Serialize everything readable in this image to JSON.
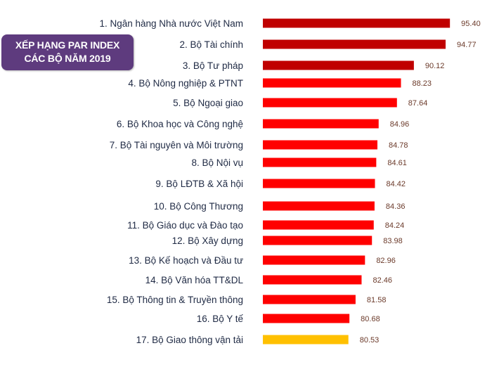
{
  "chart_data": {
    "type": "bar",
    "orientation": "horizontal",
    "title_lines": [
      "XẾP HẠNG PAR INDEX",
      "CÁC BỘ NĂM 2019"
    ],
    "categories": [
      "1. Ngân hàng Nhà nước Việt Nam",
      "2. Bộ Tài chính",
      "3. Bộ Tư pháp",
      "4. Bộ Nông nghiệp & PTNT",
      "5. Bộ Ngoại giao",
      "6. Bộ Khoa học và Công nghệ",
      "7. Bộ Tài nguyên và Môi trường",
      "8. Bộ Nội vụ",
      "9. Bộ LĐTB & Xã hội",
      "10. Bộ Công Thương",
      "11. Bộ Giáo dục và Đào tạo",
      "12. Bộ Xây dựng",
      "13. Bộ Kế hoạch và Đầu tư",
      "14. Bộ Văn hóa TT&DL",
      "15. Bộ Thông tin & Truyền thông",
      "16. Bộ Y tế",
      "17. Bộ Giao thông vận tải"
    ],
    "values": [
      95.4,
      94.77,
      90.12,
      88.23,
      87.64,
      84.96,
      84.78,
      84.61,
      84.42,
      84.36,
      84.24,
      83.98,
      82.96,
      82.46,
      81.58,
      80.68,
      80.53
    ],
    "value_labels": [
      "95.40",
      "94.77",
      "90.12",
      "88.23",
      "87.64",
      "84.96",
      "84.78",
      "84.61",
      "84.42",
      "84.36",
      "84.24",
      "83.98",
      "82.96",
      "82.46",
      "81.58",
      "80.68",
      "80.53"
    ],
    "bar_colors": [
      "#c00000",
      "#c00000",
      "#c00000",
      "#ff0000",
      "#ff0000",
      "#ff0000",
      "#ff0000",
      "#ff0000",
      "#ff0000",
      "#ff0000",
      "#ff0000",
      "#ff0000",
      "#ff0000",
      "#ff0000",
      "#ff0000",
      "#ff0000",
      "#ffc000"
    ],
    "grid": false,
    "legend": "none",
    "axes_visible": false
  }
}
